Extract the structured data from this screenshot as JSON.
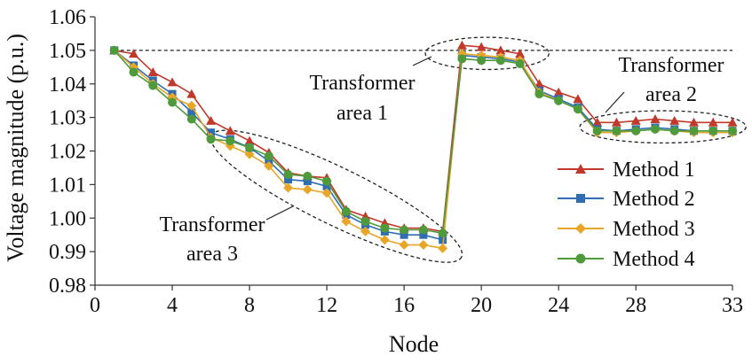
{
  "chart_data": {
    "type": "line",
    "title": "",
    "xlabel": "Node",
    "ylabel": "Voltage magnitude (p.u.)",
    "xlim": [
      0,
      33
    ],
    "ylim": [
      0.98,
      1.06
    ],
    "x_ticks": [
      0,
      4,
      8,
      12,
      16,
      20,
      24,
      28,
      33
    ],
    "x_tick_labels": [
      "0",
      "4",
      "8",
      "12",
      "16",
      "20",
      "24",
      "28",
      "33"
    ],
    "y_ticks": [
      0.98,
      0.99,
      1.0,
      1.01,
      1.02,
      1.03,
      1.04,
      1.05,
      1.06
    ],
    "y_tick_labels": [
      "0.98",
      "0.99",
      "1.00",
      "1.01",
      "1.02",
      "1.03",
      "1.04",
      "1.05",
      "1.06"
    ],
    "grid": false,
    "legend_position": "bottom-right",
    "reference_line": {
      "y": 1.05,
      "style": "dashed"
    },
    "x": [
      1,
      2,
      3,
      4,
      5,
      6,
      7,
      8,
      9,
      10,
      11,
      12,
      13,
      14,
      15,
      16,
      17,
      18,
      19,
      20,
      21,
      22,
      23,
      24,
      25,
      26,
      27,
      28,
      29,
      30,
      31,
      32,
      33
    ],
    "series": [
      {
        "name": "Method 1",
        "color": "#c0392b",
        "marker": "triangle",
        "values": [
          1.05,
          1.049,
          1.0435,
          1.0405,
          1.037,
          1.029,
          1.026,
          1.023,
          1.0195,
          1.0135,
          1.0125,
          1.012,
          1.0025,
          1.0005,
          0.9985,
          0.997,
          0.997,
          0.996,
          1.0515,
          1.051,
          1.05,
          1.049,
          1.04,
          1.0375,
          1.0355,
          1.0285,
          1.0285,
          1.029,
          1.0295,
          1.029,
          1.0285,
          1.0285,
          1.0285
        ]
      },
      {
        "name": "Method 2",
        "color": "#2e6db4",
        "marker": "square",
        "values": [
          1.05,
          1.0455,
          1.041,
          1.037,
          1.0315,
          1.0255,
          1.0235,
          1.021,
          1.017,
          1.0115,
          1.011,
          1.0095,
          1.001,
          0.998,
          0.996,
          0.995,
          0.995,
          0.9935,
          1.0485,
          1.048,
          1.0475,
          1.0465,
          1.038,
          1.0355,
          1.033,
          1.0265,
          1.026,
          1.0265,
          1.027,
          1.0265,
          1.026,
          1.026,
          1.026
        ]
      },
      {
        "name": "Method 3",
        "color": "#e8a628",
        "marker": "diamond",
        "values": [
          1.05,
          1.045,
          1.04,
          1.036,
          1.0335,
          1.024,
          1.0215,
          1.019,
          1.0155,
          1.009,
          1.0085,
          1.0075,
          0.999,
          0.996,
          0.9935,
          0.992,
          0.992,
          0.991,
          1.049,
          1.0485,
          1.048,
          1.047,
          1.0375,
          1.035,
          1.0325,
          1.0255,
          1.0255,
          1.026,
          1.0265,
          1.026,
          1.0255,
          1.0255,
          1.0255
        ]
      },
      {
        "name": "Method 4",
        "color": "#4f9a3b",
        "marker": "circle",
        "values": [
          1.05,
          1.0435,
          1.0395,
          1.0345,
          1.0295,
          1.0235,
          1.023,
          1.021,
          1.0185,
          1.013,
          1.0125,
          1.011,
          1.002,
          0.999,
          0.997,
          0.9965,
          0.9965,
          0.9955,
          1.0475,
          1.047,
          1.047,
          1.046,
          1.037,
          1.035,
          1.0325,
          1.026,
          1.026,
          1.026,
          1.0265,
          1.026,
          1.026,
          1.026,
          1.026
        ]
      }
    ],
    "annotations": [
      {
        "lines": [
          "Transformer",
          "area 1"
        ],
        "ellipse_center": [
          20.3,
          1.0491
        ],
        "ellipse_radius": [
          3.2,
          0.0048
        ]
      },
      {
        "lines": [
          "Transformer",
          "area 2"
        ],
        "ellipse_center": [
          29.4,
          1.0272
        ],
        "ellipse_radius": [
          4.3,
          0.0048
        ]
      },
      {
        "lines": [
          "Transformer",
          "area 3"
        ],
        "ellipse_center": [
          12.5,
          1.0065
        ],
        "ellipse_radius": [
          7.2,
          0.0085
        ],
        "ellipse_rotation_deg": 26
      }
    ]
  }
}
